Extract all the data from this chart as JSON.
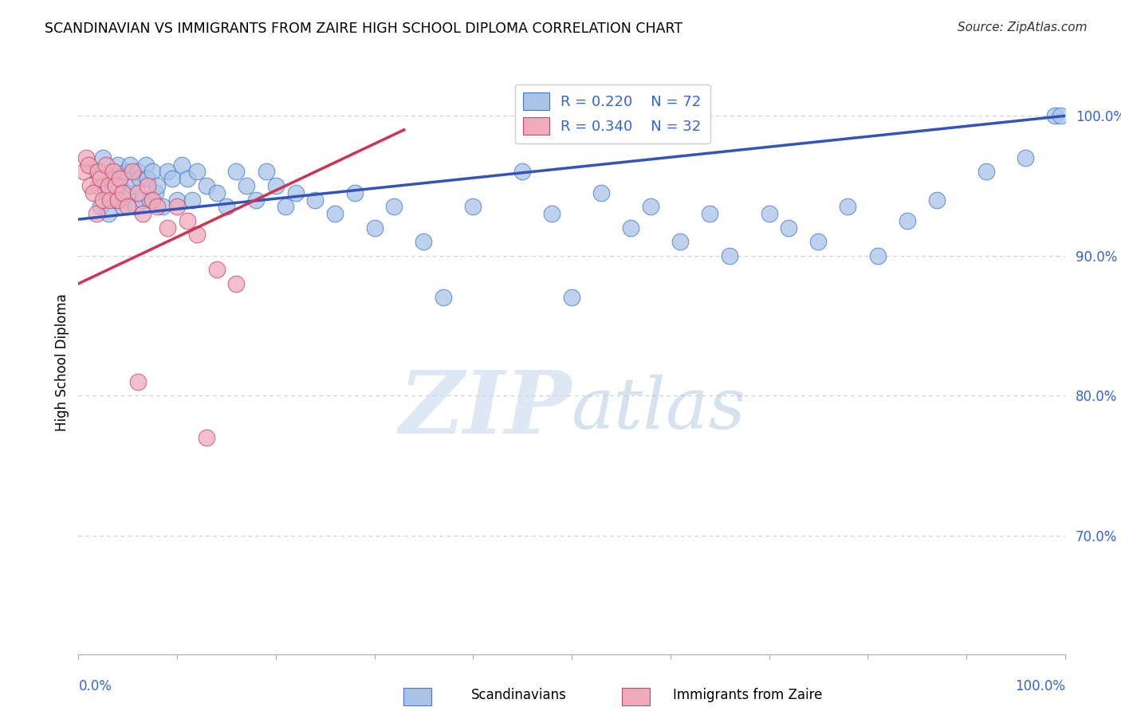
{
  "title": "SCANDINAVIAN VS IMMIGRANTS FROM ZAIRE HIGH SCHOOL DIPLOMA CORRELATION CHART",
  "source": "Source: ZipAtlas.com",
  "ylabel": "High School Diploma",
  "y_ticks": [
    0.7,
    0.8,
    0.9,
    1.0
  ],
  "y_tick_labels": [
    "70.0%",
    "80.0%",
    "90.0%",
    "100.0%"
  ],
  "x_range": [
    0.0,
    1.0
  ],
  "y_range": [
    0.615,
    1.032
  ],
  "legend_r1": "R = 0.220",
  "legend_n1": "N = 72",
  "legend_r2": "R = 0.340",
  "legend_n2": "N = 32",
  "legend_label1": "Scandinavians",
  "legend_label2": "Immigrants from Zaire",
  "blue_face": "#aac4e8",
  "blue_edge": "#4477cc",
  "pink_face": "#f0aabb",
  "pink_edge": "#cc4466",
  "blue_line": "#3355bb",
  "pink_line": "#cc3355",
  "text_color": "#3366cc",
  "grid_color": "#cccccc",
  "scan_x": [
    0.018,
    0.02,
    0.022,
    0.025,
    0.028,
    0.03,
    0.032,
    0.035,
    0.038,
    0.04,
    0.042,
    0.045,
    0.048,
    0.05,
    0.052,
    0.055,
    0.058,
    0.06,
    0.062,
    0.065,
    0.068,
    0.07,
    0.072,
    0.075,
    0.078,
    0.08,
    0.085,
    0.09,
    0.095,
    0.1,
    0.105,
    0.11,
    0.115,
    0.12,
    0.13,
    0.14,
    0.15,
    0.16,
    0.17,
    0.18,
    0.19,
    0.2,
    0.21,
    0.22,
    0.24,
    0.26,
    0.28,
    0.3,
    0.32,
    0.35,
    0.37,
    0.4,
    0.45,
    0.48,
    0.5,
    0.53,
    0.56,
    0.58,
    0.61,
    0.64,
    0.66,
    0.7,
    0.72,
    0.75,
    0.78,
    0.81,
    0.84,
    0.87,
    0.92,
    0.96,
    0.99,
    0.995
  ],
  "scan_y": [
    0.96,
    0.95,
    0.935,
    0.97,
    0.945,
    0.93,
    0.955,
    0.96,
    0.94,
    0.965,
    0.95,
    0.935,
    0.96,
    0.945,
    0.965,
    0.95,
    0.935,
    0.96,
    0.955,
    0.94,
    0.965,
    0.955,
    0.94,
    0.96,
    0.945,
    0.95,
    0.935,
    0.96,
    0.955,
    0.94,
    0.965,
    0.955,
    0.94,
    0.96,
    0.95,
    0.945,
    0.935,
    0.96,
    0.95,
    0.94,
    0.96,
    0.95,
    0.935,
    0.945,
    0.94,
    0.93,
    0.945,
    0.92,
    0.935,
    0.91,
    0.87,
    0.935,
    0.96,
    0.93,
    0.87,
    0.945,
    0.92,
    0.935,
    0.91,
    0.93,
    0.9,
    0.93,
    0.92,
    0.91,
    0.935,
    0.9,
    0.925,
    0.94,
    0.96,
    0.97,
    1.0,
    1.0
  ],
  "zaire_x": [
    0.005,
    0.008,
    0.01,
    0.012,
    0.015,
    0.018,
    0.02,
    0.022,
    0.025,
    0.028,
    0.03,
    0.032,
    0.035,
    0.038,
    0.04,
    0.042,
    0.045,
    0.05,
    0.055,
    0.06,
    0.065,
    0.07,
    0.075,
    0.08,
    0.09,
    0.1,
    0.11,
    0.12,
    0.14,
    0.16,
    0.06,
    0.13
  ],
  "zaire_y": [
    0.96,
    0.97,
    0.965,
    0.95,
    0.945,
    0.93,
    0.96,
    0.955,
    0.94,
    0.965,
    0.95,
    0.94,
    0.96,
    0.95,
    0.94,
    0.955,
    0.945,
    0.935,
    0.96,
    0.945,
    0.93,
    0.95,
    0.94,
    0.935,
    0.92,
    0.935,
    0.925,
    0.915,
    0.89,
    0.88,
    0.81,
    0.77
  ],
  "blue_line_x": [
    0.0,
    1.0
  ],
  "blue_line_y": [
    0.926,
    1.0
  ],
  "pink_line_x": [
    0.0,
    0.33
  ],
  "pink_line_y": [
    0.88,
    0.99
  ]
}
